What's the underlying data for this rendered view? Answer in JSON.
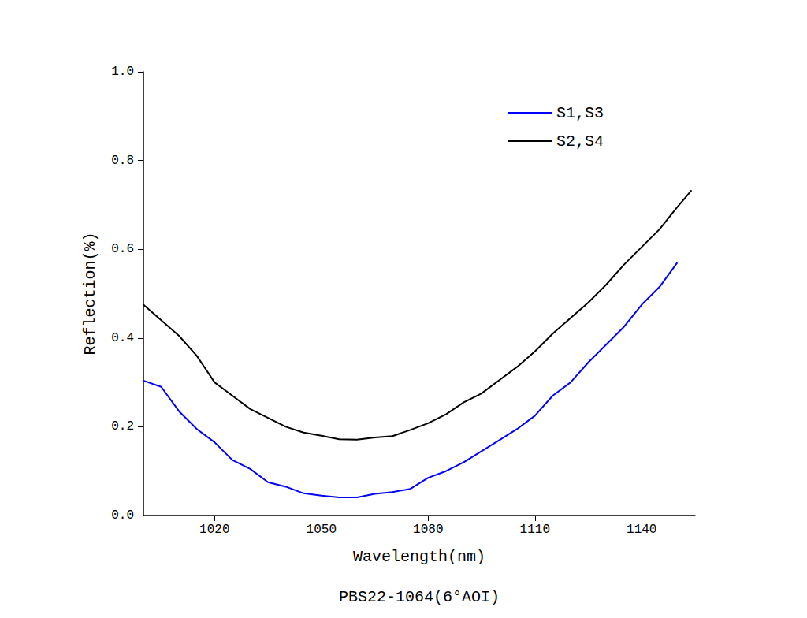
{
  "chart_data": {
    "type": "line",
    "title": "PBS22-1064(6°AOI)",
    "x_label": "Wavelength(nm)",
    "y_label": "Reflection(%)",
    "x": [
      1000,
      1005,
      1010,
      1015,
      1020,
      1025,
      1030,
      1035,
      1040,
      1045,
      1050,
      1055,
      1060,
      1065,
      1070,
      1075,
      1080,
      1085,
      1090,
      1095,
      1100,
      1105,
      1110,
      1115,
      1120,
      1125,
      1130,
      1135,
      1140,
      1145,
      1150,
      1154
    ],
    "series": [
      {
        "name": "S1,S3",
        "color": "#0000ff",
        "values": [
          0.304,
          0.29,
          0.235,
          0.195,
          0.165,
          0.125,
          0.105,
          0.075,
          0.065,
          0.05,
          0.045,
          0.041,
          0.041,
          0.049,
          0.053,
          0.06,
          0.085,
          0.1,
          0.12,
          0.145,
          0.17,
          0.195,
          0.225,
          0.27,
          0.3,
          0.345,
          0.385,
          0.425,
          0.475,
          0.515,
          0.57,
          null
        ]
      },
      {
        "name": "S2,S4",
        "color": "#000000",
        "values": [
          0.475,
          0.44,
          0.405,
          0.36,
          0.3,
          0.27,
          0.24,
          0.22,
          0.2,
          0.187,
          0.18,
          0.172,
          0.171,
          0.176,
          0.179,
          0.193,
          0.208,
          0.228,
          0.255,
          0.275,
          0.305,
          0.335,
          0.37,
          0.41,
          0.445,
          0.48,
          0.52,
          0.565,
          0.605,
          0.645,
          0.695,
          0.733
        ]
      }
    ],
    "xlim": [
      1000,
      1155
    ],
    "xticks": [
      1020,
      1050,
      1080,
      1110,
      1140
    ],
    "ylim": [
      0,
      1
    ],
    "yticks": [
      {
        "value": 0,
        "label": "0.0"
      },
      0.2,
      0.4,
      0.6,
      0.8,
      {
        "value": 1,
        "label": "1.0"
      }
    ],
    "grid": false,
    "legend": "upper right"
  }
}
